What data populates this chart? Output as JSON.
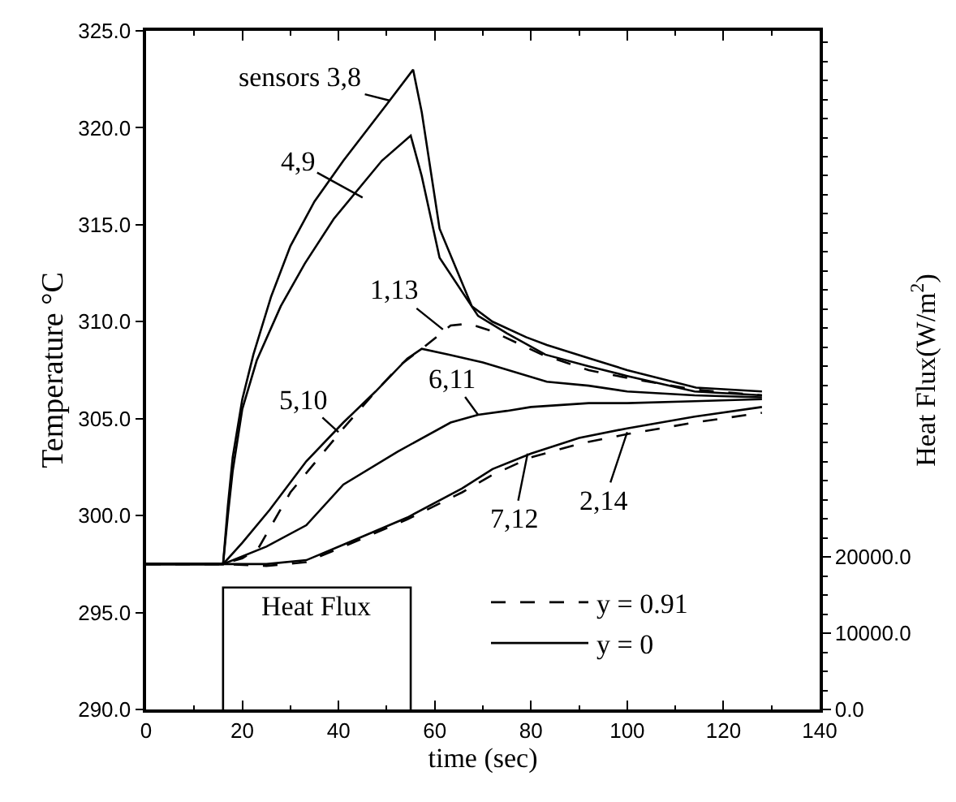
{
  "chart_data": {
    "type": "line",
    "xlabel": "time (sec)",
    "ylabel": "Temperature °C",
    "y2label": "Heat Flux(W/m$^{2}$)",
    "xlim": [
      0,
      140
    ],
    "xticks": [
      0,
      20,
      40,
      60,
      80,
      100,
      120,
      140
    ],
    "ylim": [
      290,
      325
    ],
    "yticks": [
      {
        "value": 290,
        "label": "290.0"
      },
      {
        "value": 295,
        "label": "295.0"
      },
      {
        "value": 300,
        "label": "300.0"
      },
      {
        "value": 305,
        "label": "305.0"
      },
      {
        "value": 310,
        "label": "310.0"
      },
      {
        "value": 315,
        "label": "315.0"
      },
      {
        "value": 320,
        "label": "320.0"
      },
      {
        "value": 325,
        "label": "325.0"
      }
    ],
    "y2lim": [
      0,
      89000
    ],
    "y2ticks": [
      {
        "value": 0,
        "label": "0.0"
      },
      {
        "value": 10000,
        "label": "10000.0"
      },
      {
        "value": 20000,
        "label": "20000.0"
      }
    ],
    "legend": "bottom right",
    "marker": "none",
    "series": [
      {
        "name": "y = 0.91",
        "color": "#000000",
        "line_style": "dashed",
        "x": [
          0,
          16,
          20,
          23.3,
          30,
          36,
          41,
          47.7,
          53,
          58.3,
          63.3,
          67,
          72,
          82.3,
          92,
          100,
          114,
          128
        ],
        "values": [
          297.5,
          297.5,
          297.8,
          298.3,
          301.2,
          303,
          304.5,
          306.4,
          307.8,
          308.8,
          309.8,
          309.9,
          309.5,
          308.3,
          307.5,
          307.1,
          306.5,
          306.2
        ]
      },
      {
        "name": "y = 0",
        "color": "#000000",
        "line_style": "solid",
        "x": [
          0,
          16,
          17,
          18,
          20,
          22.3,
          26,
          30,
          35,
          41,
          50,
          55.5,
          57.3,
          61,
          67.7,
          72,
          79,
          83.3,
          92.3,
          100,
          114.3,
          128
        ],
        "values": [
          297.5,
          297.5,
          300.5,
          303,
          306,
          308.3,
          311.3,
          313.9,
          316.2,
          318.3,
          321.2,
          323,
          320.8,
          314.8,
          310.8,
          310,
          309.2,
          308.8,
          308.1,
          307.5,
          306.6,
          306.4
        ]
      },
      {
        "color": "#000000",
        "line_style": "solid",
        "x": [
          0,
          16,
          17,
          18,
          20,
          23,
          28,
          33,
          39,
          49,
          55,
          57.3,
          61,
          69,
          75,
          83,
          92,
          100,
          114,
          128
        ],
        "values": [
          297.5,
          297.5,
          300,
          302.3,
          305.5,
          308,
          310.8,
          313,
          315.3,
          318.3,
          319.6,
          317.5,
          313.3,
          310.3,
          309.4,
          308.3,
          307.7,
          307.2,
          306.4,
          306.2
        ]
      },
      {
        "color": "#000000",
        "line_style": "solid",
        "x": [
          0,
          16,
          20,
          25.7,
          33.3,
          41,
          47.7,
          54.3,
          57.3,
          63,
          70,
          83.3,
          92,
          100,
          114,
          128
        ],
        "values": [
          297.5,
          297.5,
          298.6,
          300.3,
          302.8,
          304.8,
          306.4,
          308.1,
          308.6,
          308.3,
          307.9,
          306.9,
          306.7,
          306.4,
          306.2,
          306.1
        ]
      },
      {
        "color": "#000000",
        "line_style": "solid",
        "x": [
          0,
          16,
          25,
          33.3,
          41,
          52.3,
          63.3,
          69,
          75,
          80,
          92,
          100,
          114,
          128
        ],
        "values": [
          297.5,
          297.5,
          298.4,
          299.5,
          301.6,
          303.3,
          304.8,
          305.2,
          305.4,
          305.6,
          305.8,
          305.8,
          305.9,
          306
        ]
      },
      {
        "color": "#000000",
        "line_style": "solid",
        "x": [
          0,
          16,
          25,
          33.3,
          41,
          54.3,
          65.7,
          72,
          80,
          90,
          100,
          114,
          128
        ],
        "values": [
          297.5,
          297.5,
          297.5,
          297.7,
          298.5,
          299.9,
          301.4,
          302.4,
          303.2,
          304,
          304.5,
          305.1,
          305.6
        ]
      },
      {
        "color": "#000000",
        "line_style": "dashed",
        "x": [
          0,
          16,
          25,
          33.3,
          41,
          54.3,
          65.7,
          72,
          80,
          90,
          100,
          114,
          128
        ],
        "values": [
          297.5,
          297.5,
          297.4,
          297.6,
          298.4,
          299.8,
          301.2,
          302.1,
          303,
          303.7,
          304.2,
          304.8,
          305.3
        ]
      },
      {
        "name": "Heat Flux",
        "color": "#000000",
        "line_style": "solid",
        "axis": "y2",
        "x": [
          16,
          16,
          55,
          55
        ],
        "values": [
          0,
          16000,
          16000,
          0
        ]
      }
    ],
    "annotations": [
      {
        "text": "sensors 3,8",
        "x": 50.7,
        "y": 321.4
      },
      {
        "text": "4,9",
        "x": 45,
        "y": 316.4
      },
      {
        "text": "1,13",
        "x": 61.7,
        "y": 309.6
      },
      {
        "text": "5,10",
        "x": 40,
        "y": 304.3
      },
      {
        "text": "6,11",
        "x": 69,
        "y": 305.2
      },
      {
        "text": "7,12",
        "x": 79.3,
        "y": 303.2
      },
      {
        "text": "2,14",
        "x": 100,
        "y": 304.3
      }
    ]
  }
}
